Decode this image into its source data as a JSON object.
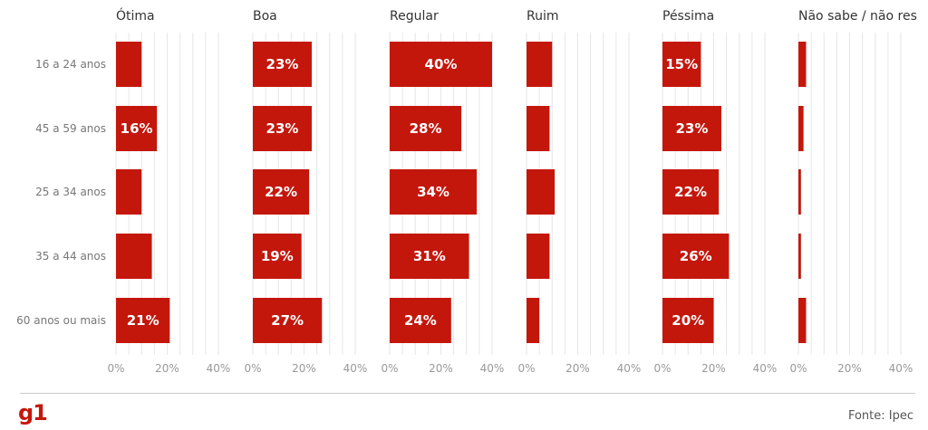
{
  "chart_data": {
    "type": "bar",
    "orientation": "horizontal",
    "categories": [
      "16 a 24 anos",
      "45 a 59 anos",
      "25 a 34 anos",
      "35 a 44 anos",
      "60 anos ou mais"
    ],
    "series": [
      {
        "name": "Ótima",
        "values": [
          10,
          16,
          10,
          14,
          21
        ],
        "labels": [
          "",
          "16%",
          "",
          "",
          "21%"
        ]
      },
      {
        "name": "Boa",
        "values": [
          23,
          23,
          22,
          19,
          27
        ],
        "labels": [
          "23%",
          "23%",
          "22%",
          "19%",
          "27%"
        ]
      },
      {
        "name": "Regular",
        "values": [
          40,
          28,
          34,
          31,
          24
        ],
        "labels": [
          "40%",
          "28%",
          "34%",
          "31%",
          "24%"
        ]
      },
      {
        "name": "Ruim",
        "values": [
          10,
          9,
          11,
          9,
          5
        ],
        "labels": [
          "",
          "",
          "",
          "",
          ""
        ]
      },
      {
        "name": "Péssima",
        "values": [
          15,
          23,
          22,
          26,
          20
        ],
        "labels": [
          "15%",
          "23%",
          "22%",
          "26%",
          "20%"
        ]
      },
      {
        "name": "Não sabe / não res",
        "values": [
          3,
          2,
          1,
          1,
          3
        ],
        "labels": [
          "",
          "",
          "",
          "",
          ""
        ]
      }
    ],
    "xlim": [
      0,
      40
    ],
    "xticks": [
      "0%",
      "20%",
      "40%"
    ],
    "bar_color": "#c4170c",
    "grid": true
  },
  "footer": {
    "logo": "g1",
    "source": "Fonte: Ipec"
  }
}
